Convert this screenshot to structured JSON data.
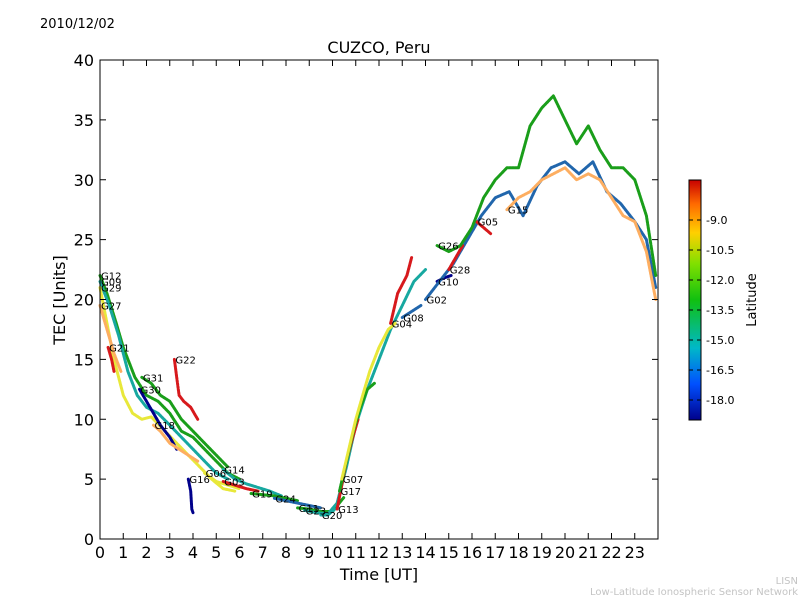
{
  "date": "2010/12/02",
  "footer": {
    "line1": "LISN",
    "line2": "Low-Latitude Ionospheric Sensor Network"
  },
  "colors": {
    "red": "#d7191c",
    "orange": "#fdae61",
    "yellow": "#e8e83a",
    "green": "#1a9e1a",
    "teal": "#17a8a0",
    "blue": "#2166ac",
    "navy": "#00008b"
  },
  "chart_data": {
    "type": "scatter",
    "title": "CUZCO, Peru",
    "xlabel": "Time [UT]",
    "ylabel": "TEC [Units]",
    "xlim": [
      0,
      24
    ],
    "ylim": [
      0,
      40
    ],
    "xticks": [
      "0",
      "1",
      "2",
      "3",
      "4",
      "5",
      "6",
      "7",
      "8",
      "9",
      "10",
      "11",
      "12",
      "13",
      "14",
      "15",
      "16",
      "17",
      "18",
      "19",
      "20",
      "21",
      "22",
      "23"
    ],
    "yticks": [
      "0",
      "5",
      "10",
      "15",
      "20",
      "25",
      "30",
      "35",
      "40"
    ],
    "grid": false,
    "colorbar": {
      "label": "Latitude",
      "range": [
        -19.0,
        -7.0
      ],
      "ticks": [
        "-9.0",
        "-10.5",
        "-12.0",
        "-13.5",
        "-15.0",
        "-16.5",
        "-18.0"
      ],
      "tick_values": [
        -9.0,
        -10.5,
        -12.0,
        -13.5,
        -15.0,
        -16.5,
        -18.0
      ]
    },
    "series": [
      {
        "name": "G12",
        "color": "green",
        "points": [
          [
            0.0,
            22.0
          ],
          [
            0.3,
            20.5
          ],
          [
            0.7,
            18.0
          ],
          [
            1.0,
            16.0
          ],
          [
            1.5,
            13.5
          ],
          [
            2.0,
            12.0
          ],
          [
            2.5,
            11.5
          ],
          [
            3.0,
            10.5
          ],
          [
            3.5,
            9.0
          ],
          [
            4.0,
            8.5
          ],
          [
            4.5,
            7.5
          ],
          [
            5.0,
            6.5
          ],
          [
            5.5,
            5.5
          ],
          [
            6.0,
            5.0
          ]
        ]
      },
      {
        "name": "G09",
        "color": "teal",
        "points": [
          [
            0.0,
            21.5
          ],
          [
            0.4,
            19.5
          ],
          [
            0.8,
            17.0
          ],
          [
            1.2,
            14.0
          ],
          [
            1.6,
            12.0
          ],
          [
            2.0,
            11.0
          ],
          [
            2.5,
            10.5
          ],
          [
            3.0,
            9.5
          ],
          [
            3.5,
            8.5
          ],
          [
            4.0,
            7.5
          ],
          [
            4.5,
            6.5
          ],
          [
            5.0,
            5.5
          ],
          [
            5.5,
            5.0
          ]
        ]
      },
      {
        "name": "G29",
        "color": "yellow",
        "points": [
          [
            0.0,
            21.0
          ],
          [
            0.3,
            18.0
          ],
          [
            0.6,
            15.0
          ],
          [
            1.0,
            12.0
          ],
          [
            1.4,
            10.5
          ],
          [
            1.8,
            10.0
          ],
          [
            2.2,
            10.2
          ],
          [
            2.8,
            9.0
          ],
          [
            3.3,
            8.0
          ],
          [
            3.8,
            7.0
          ],
          [
            4.3,
            6.0
          ],
          [
            4.8,
            5.0
          ],
          [
            5.3,
            4.2
          ],
          [
            5.8,
            4.0
          ]
        ]
      },
      {
        "name": "G27",
        "color": "orange",
        "points": [
          [
            0.0,
            19.5
          ],
          [
            0.3,
            17.5
          ],
          [
            0.6,
            15.5
          ],
          [
            0.9,
            14.0
          ]
        ]
      },
      {
        "name": "G21",
        "color": "red",
        "points": [
          [
            0.35,
            16.0
          ],
          [
            0.5,
            15.0
          ],
          [
            0.6,
            14.0
          ]
        ]
      },
      {
        "name": "G31",
        "color": "green",
        "points": [
          [
            1.8,
            13.5
          ],
          [
            2.2,
            13.0
          ],
          [
            2.6,
            12.0
          ],
          [
            3.0,
            11.5
          ],
          [
            3.5,
            10.0
          ],
          [
            4.0,
            9.0
          ],
          [
            4.5,
            8.0
          ],
          [
            5.0,
            7.0
          ],
          [
            5.5,
            6.0
          ]
        ]
      },
      {
        "name": "G30",
        "color": "navy",
        "points": [
          [
            1.7,
            12.5
          ],
          [
            2.0,
            11.5
          ],
          [
            2.3,
            10.5
          ],
          [
            2.6,
            9.5
          ],
          [
            3.0,
            8.5
          ],
          [
            3.3,
            7.5
          ]
        ]
      },
      {
        "name": "G22",
        "color": "red",
        "points": [
          [
            3.2,
            15.0
          ],
          [
            3.3,
            13.5
          ],
          [
            3.4,
            12.0
          ],
          [
            3.6,
            11.5
          ],
          [
            3.9,
            11.0
          ],
          [
            4.2,
            10.0
          ]
        ]
      },
      {
        "name": "G18",
        "color": "orange",
        "points": [
          [
            2.3,
            9.5
          ],
          [
            2.6,
            9.0
          ],
          [
            3.0,
            8.0
          ],
          [
            3.4,
            7.5
          ],
          [
            3.8,
            7.0
          ],
          [
            4.2,
            6.5
          ]
        ]
      },
      {
        "name": "G16",
        "color": "navy",
        "points": [
          [
            3.8,
            5.0
          ],
          [
            3.9,
            4.0
          ],
          [
            3.95,
            2.5
          ],
          [
            4.0,
            2.2
          ]
        ]
      },
      {
        "name": "G06",
        "color": "yellow",
        "points": [
          [
            4.5,
            5.5
          ],
          [
            5.0,
            4.8
          ],
          [
            5.5,
            4.5
          ],
          [
            6.0,
            4.2
          ]
        ]
      },
      {
        "name": "G03",
        "color": "red",
        "points": [
          [
            5.3,
            4.8
          ],
          [
            5.8,
            4.5
          ],
          [
            6.3,
            4.2
          ],
          [
            6.8,
            4.0
          ]
        ]
      },
      {
        "name": "G14",
        "color": "teal",
        "points": [
          [
            5.3,
            5.8
          ],
          [
            5.8,
            5.0
          ],
          [
            6.3,
            4.6
          ],
          [
            6.8,
            4.3
          ],
          [
            7.3,
            4.0
          ],
          [
            7.8,
            3.6
          ]
        ]
      },
      {
        "name": "G19",
        "color": "green",
        "points": [
          [
            6.5,
            3.8
          ],
          [
            7.0,
            3.7
          ],
          [
            7.5,
            3.6
          ],
          [
            8.0,
            3.4
          ],
          [
            8.5,
            3.2
          ]
        ]
      },
      {
        "name": "G24",
        "color": "blue",
        "points": [
          [
            7.5,
            3.4
          ],
          [
            8.0,
            3.2
          ],
          [
            8.5,
            3.0
          ],
          [
            9.0,
            2.8
          ],
          [
            9.5,
            2.6
          ]
        ]
      },
      {
        "name": "G11",
        "color": "green",
        "points": [
          [
            8.5,
            2.6
          ],
          [
            9.0,
            2.5
          ],
          [
            9.5,
            2.3
          ],
          [
            10.0,
            2.3
          ],
          [
            10.5,
            3.5
          ]
        ]
      },
      {
        "name": "G23",
        "color": "teal",
        "points": [
          [
            8.8,
            2.4
          ],
          [
            9.3,
            2.2
          ],
          [
            9.8,
            2.1
          ],
          [
            10.2,
            3.0
          ],
          [
            10.6,
            6.0
          ],
          [
            11.0,
            9.5
          ],
          [
            11.5,
            12.5
          ],
          [
            12.0,
            15.0
          ],
          [
            12.5,
            17.5
          ],
          [
            13.0,
            19.5
          ],
          [
            13.5,
            21.5
          ],
          [
            14.0,
            22.5
          ]
        ]
      },
      {
        "name": "G20",
        "color": "teal",
        "points": [
          [
            9.5,
            2.0
          ],
          [
            9.8,
            2.0
          ],
          [
            10.1,
            2.5
          ]
        ]
      },
      {
        "name": "G13",
        "color": "red",
        "points": [
          [
            10.2,
            2.5
          ],
          [
            10.4,
            4.5
          ],
          [
            10.6,
            6.5
          ],
          [
            10.8,
            8.0
          ],
          [
            11.1,
            10.0
          ]
        ]
      },
      {
        "name": "G17",
        "color": "green",
        "points": [
          [
            10.3,
            4.0
          ],
          [
            10.6,
            6.5
          ],
          [
            10.9,
            9.0
          ],
          [
            11.2,
            11.0
          ],
          [
            11.5,
            12.5
          ],
          [
            11.8,
            13.0
          ]
        ]
      },
      {
        "name": "G07",
        "color": "yellow",
        "points": [
          [
            10.4,
            5.0
          ],
          [
            10.7,
            7.5
          ],
          [
            11.0,
            10.0
          ],
          [
            11.3,
            12.0
          ],
          [
            11.6,
            14.0
          ],
          [
            12.0,
            16.0
          ],
          [
            12.4,
            17.5
          ],
          [
            12.7,
            18.0
          ]
        ]
      },
      {
        "name": "G04",
        "color": "red",
        "points": [
          [
            12.5,
            18.0
          ],
          [
            12.8,
            20.5
          ],
          [
            13.2,
            22.0
          ],
          [
            13.4,
            23.5
          ]
        ]
      },
      {
        "name": "G08",
        "color": "blue",
        "points": [
          [
            13.0,
            18.5
          ],
          [
            13.4,
            19.0
          ],
          [
            13.8,
            19.5
          ]
        ]
      },
      {
        "name": "G10",
        "color": "navy",
        "points": [
          [
            14.5,
            21.5
          ],
          [
            14.8,
            21.8
          ],
          [
            15.1,
            22.0
          ]
        ]
      },
      {
        "name": "G02",
        "color": "blue",
        "points": [
          [
            14.0,
            20.0
          ],
          [
            14.6,
            21.5
          ],
          [
            15.2,
            23.0
          ],
          [
            15.8,
            25.0
          ],
          [
            16.4,
            27.0
          ],
          [
            17.0,
            28.5
          ],
          [
            17.6,
            29.0
          ],
          [
            18.2,
            27.0
          ],
          [
            18.8,
            29.5
          ],
          [
            19.4,
            31.0
          ],
          [
            20.0,
            31.5
          ],
          [
            20.6,
            30.5
          ],
          [
            21.2,
            31.5
          ],
          [
            21.8,
            29.0
          ],
          [
            22.4,
            28.0
          ],
          [
            23.0,
            26.5
          ],
          [
            23.5,
            25.0
          ],
          [
            23.9,
            21.0
          ]
        ]
      },
      {
        "name": "G28",
        "color": "red",
        "points": [
          [
            15.0,
            22.5
          ],
          [
            15.3,
            23.5
          ],
          [
            15.6,
            24.5
          ]
        ]
      },
      {
        "name": "G05",
        "color": "red",
        "points": [
          [
            16.2,
            26.5
          ],
          [
            16.5,
            26.0
          ],
          [
            16.8,
            25.5
          ]
        ]
      },
      {
        "name": "G26",
        "color": "green",
        "points": [
          [
            14.5,
            24.5
          ],
          [
            15.0,
            24.0
          ],
          [
            15.5,
            24.5
          ],
          [
            16.0,
            26.0
          ],
          [
            16.5,
            28.5
          ],
          [
            17.0,
            30.0
          ],
          [
            17.5,
            31.0
          ],
          [
            18.0,
            31.0
          ],
          [
            18.5,
            34.5
          ],
          [
            19.0,
            36.0
          ],
          [
            19.5,
            37.0
          ],
          [
            20.0,
            35.0
          ],
          [
            20.5,
            33.0
          ],
          [
            21.0,
            34.5
          ],
          [
            21.5,
            32.5
          ],
          [
            22.0,
            31.0
          ],
          [
            22.5,
            31.0
          ],
          [
            23.0,
            30.0
          ],
          [
            23.5,
            27.0
          ],
          [
            23.9,
            22.0
          ]
        ]
      },
      {
        "name": "G15",
        "color": "orange",
        "points": [
          [
            17.5,
            27.5
          ],
          [
            18.0,
            28.5
          ],
          [
            18.5,
            29.0
          ],
          [
            19.0,
            30.0
          ],
          [
            19.5,
            30.5
          ],
          [
            20.0,
            31.0
          ],
          [
            20.5,
            30.0
          ],
          [
            21.0,
            30.5
          ],
          [
            21.5,
            30.0
          ],
          [
            22.0,
            28.5
          ],
          [
            22.5,
            27.0
          ],
          [
            23.0,
            26.5
          ],
          [
            23.5,
            24.0
          ],
          [
            23.9,
            20.0
          ]
        ]
      }
    ],
    "annotations": [
      "G12",
      "G09",
      "G29",
      "G27",
      "G21",
      "G31",
      "G30",
      "G22",
      "G18",
      "G16",
      "G06",
      "G03",
      "G14",
      "G19",
      "G24",
      "G11",
      "G23",
      "G20",
      "G13",
      "G07",
      "G17",
      "G04",
      "G08",
      "G28",
      "G02",
      "G10",
      "G05",
      "G26",
      "G15"
    ]
  }
}
